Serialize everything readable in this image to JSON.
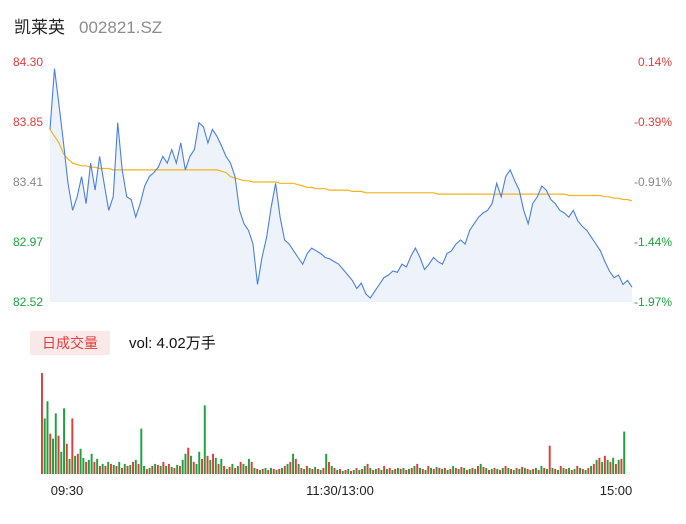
{
  "header": {
    "name": "凯莱英",
    "code": "002821.SZ"
  },
  "volume": {
    "badge": "日成交量",
    "label": "vol: 4.02万手"
  },
  "colors": {
    "price": "#4a7fe0",
    "avg": "#f4b223",
    "up": "#e03c3c",
    "down": "#19a33c",
    "area": "#eef2fb"
  },
  "chart_data": {
    "type": "line",
    "title": "",
    "xlabel": "",
    "ylabel": "",
    "x_ticks": [
      "09:30",
      "11:30/13:00",
      "15:00"
    ],
    "y_ticks_left": [
      "84.30",
      "83.85",
      "83.41",
      "82.97",
      "82.52"
    ],
    "y_ticks_right": [
      "0.14%",
      "-0.39%",
      "-0.91%",
      "-1.44%",
      "-1.97%"
    ],
    "ylim": [
      82.52,
      84.3
    ],
    "grid": false,
    "series": [
      {
        "values": [
          83.8,
          84.25,
          83.98,
          83.7,
          83.4,
          83.2,
          83.3,
          83.45,
          83.25,
          83.55,
          83.35,
          83.6,
          83.4,
          83.2,
          83.3,
          83.85,
          83.5,
          83.3,
          83.28,
          83.15,
          83.25,
          83.38,
          83.45,
          83.48,
          83.52,
          83.6,
          83.55,
          83.65,
          83.55,
          83.7,
          83.5,
          83.6,
          83.65,
          83.85,
          83.82,
          83.7,
          83.8,
          83.75,
          83.68,
          83.6,
          83.55,
          83.45,
          83.2,
          83.1,
          83.05,
          82.95,
          82.65,
          82.85,
          83.0,
          83.22,
          83.4,
          83.15,
          82.98,
          82.95,
          82.9,
          82.85,
          82.8,
          82.88,
          82.92,
          82.9,
          82.88,
          82.85,
          82.84,
          82.82,
          82.8,
          82.76,
          82.72,
          82.68,
          82.62,
          82.66,
          82.58,
          82.55,
          82.6,
          82.65,
          82.7,
          82.72,
          82.75,
          82.74,
          82.8,
          82.78,
          82.86,
          82.92,
          82.85,
          82.76,
          82.8,
          82.85,
          82.82,
          82.8,
          82.88,
          82.9,
          82.95,
          82.98,
          82.95,
          83.05,
          83.1,
          83.15,
          83.18,
          83.2,
          83.25,
          83.4,
          83.3,
          83.45,
          83.5,
          83.42,
          83.35,
          83.2,
          83.1,
          83.25,
          83.3,
          83.38,
          83.35,
          83.28,
          83.25,
          83.2,
          83.18,
          83.15,
          83.2,
          83.12,
          83.08,
          83.05,
          83.0,
          82.95,
          82.9,
          82.82,
          82.75,
          82.7,
          82.72,
          82.65,
          82.68,
          82.63
        ]
      },
      {
        "values": [
          83.8,
          83.75,
          83.7,
          83.62,
          83.58,
          83.55,
          83.54,
          83.53,
          83.53,
          83.52,
          83.52,
          83.51,
          83.51,
          83.51,
          83.5,
          83.5,
          83.5,
          83.5,
          83.5,
          83.5,
          83.5,
          83.5,
          83.5,
          83.5,
          83.5,
          83.5,
          83.5,
          83.5,
          83.5,
          83.5,
          83.5,
          83.5,
          83.5,
          83.5,
          83.5,
          83.5,
          83.5,
          83.5,
          83.49,
          83.48,
          83.45,
          83.44,
          83.43,
          83.42,
          83.42,
          83.41,
          83.41,
          83.41,
          83.41,
          83.41,
          83.41,
          83.4,
          83.4,
          83.4,
          83.4,
          83.39,
          83.38,
          83.37,
          83.37,
          83.36,
          83.36,
          83.36,
          83.35,
          83.35,
          83.35,
          83.35,
          83.35,
          83.34,
          83.34,
          83.34,
          83.33,
          83.33,
          83.33,
          83.33,
          83.33,
          83.33,
          83.33,
          83.33,
          83.33,
          83.33,
          83.33,
          83.33,
          83.33,
          83.33,
          83.33,
          83.33,
          83.32,
          83.32,
          83.32,
          83.32,
          83.32,
          83.32,
          83.32,
          83.32,
          83.32,
          83.32,
          83.32,
          83.32,
          83.32,
          83.32,
          83.32,
          83.32,
          83.32,
          83.32,
          83.32,
          83.32,
          83.32,
          83.32,
          83.32,
          83.32,
          83.32,
          83.32,
          83.32,
          83.32,
          83.32,
          83.31,
          83.31,
          83.31,
          83.31,
          83.31,
          83.31,
          83.31,
          83.31,
          83.3,
          83.3,
          83.29,
          83.29,
          83.28,
          83.28,
          83.27
        ]
      }
    ],
    "volume": {
      "values": [
        100,
        55,
        72,
        40,
        35,
        60,
        38,
        22,
        65,
        30,
        15,
        55,
        18,
        20,
        25,
        16,
        12,
        14,
        20,
        12,
        15,
        8,
        10,
        8,
        12,
        10,
        9,
        8,
        12,
        6,
        10,
        8,
        9,
        12,
        14,
        10,
        45,
        8,
        5,
        6,
        8,
        10,
        9,
        8,
        12,
        8,
        10,
        7,
        6,
        9,
        8,
        14,
        20,
        26,
        18,
        12,
        10,
        22,
        15,
        68,
        18,
        14,
        20,
        16,
        10,
        15,
        8,
        5,
        7,
        10,
        6,
        8,
        12,
        10,
        8,
        15,
        12,
        6,
        5,
        4,
        5,
        6,
        4,
        6,
        5,
        4,
        5,
        6,
        8,
        10,
        12,
        20,
        15,
        10,
        6,
        5,
        8,
        6,
        5,
        7,
        5,
        4,
        6,
        20,
        12,
        8,
        6,
        4,
        5,
        3,
        4,
        5,
        3,
        4,
        6,
        4,
        5,
        8,
        10,
        6,
        4,
        5,
        6,
        4,
        8,
        5,
        6,
        4,
        5,
        6,
        5,
        6,
        4,
        5,
        6,
        8,
        10,
        6,
        5,
        4,
        8,
        6,
        5,
        7,
        6,
        5,
        6,
        4,
        5,
        8,
        6,
        5,
        7,
        6,
        4,
        5,
        6,
        5,
        8,
        10,
        7,
        6,
        4,
        5,
        6,
        5,
        4,
        6,
        8,
        6,
        5,
        4,
        6,
        5,
        7,
        6,
        5,
        4,
        5,
        6,
        4,
        8,
        6,
        5,
        28,
        6,
        5,
        4,
        8,
        6,
        5,
        6,
        4,
        5,
        8,
        6,
        5,
        4,
        6,
        8,
        10,
        14,
        16,
        12,
        18,
        14,
        12,
        16,
        10,
        14,
        15,
        42
      ],
      "colors": [
        "up",
        "down",
        "down",
        "up",
        "down",
        "down",
        "up",
        "down",
        "down",
        "up",
        "down",
        "up",
        "down",
        "up",
        "down",
        "down",
        "up",
        "down",
        "down",
        "up",
        "down",
        "up",
        "down",
        "up",
        "down",
        "up",
        "down",
        "up",
        "down",
        "up",
        "down",
        "up",
        "down",
        "up",
        "down",
        "up",
        "down",
        "down",
        "up",
        "down",
        "up",
        "down",
        "up",
        "down",
        "up",
        "down",
        "up",
        "down",
        "up",
        "down",
        "up",
        "down",
        "down",
        "up",
        "down",
        "up",
        "down",
        "down",
        "up",
        "down",
        "up",
        "down",
        "up",
        "down",
        "up",
        "down",
        "up",
        "down",
        "up",
        "down",
        "up",
        "down",
        "up",
        "down",
        "up",
        "down",
        "up",
        "down",
        "up",
        "down",
        "up",
        "down",
        "up",
        "down",
        "up",
        "down",
        "up",
        "down",
        "up",
        "down",
        "up",
        "down",
        "up",
        "down",
        "up",
        "down",
        "up",
        "down",
        "up",
        "down",
        "up",
        "down",
        "up",
        "down",
        "up",
        "down",
        "up",
        "down",
        "up",
        "down",
        "up",
        "down",
        "up",
        "down",
        "up",
        "down",
        "up",
        "down",
        "up",
        "down",
        "up",
        "down",
        "up",
        "down",
        "up",
        "down",
        "up",
        "down",
        "up",
        "down",
        "up",
        "down",
        "up",
        "down",
        "up",
        "down",
        "up",
        "down",
        "up",
        "down",
        "up",
        "down",
        "up",
        "down",
        "up",
        "down",
        "up",
        "down",
        "up",
        "down",
        "up",
        "down",
        "up",
        "down",
        "up",
        "down",
        "up",
        "down",
        "up",
        "down",
        "up",
        "down",
        "up",
        "down",
        "up",
        "down",
        "up",
        "down",
        "up",
        "down",
        "up",
        "down",
        "up",
        "down",
        "up",
        "down",
        "up",
        "down",
        "up",
        "down",
        "up",
        "down",
        "up",
        "down",
        "up",
        "down",
        "up",
        "down",
        "up",
        "down",
        "up",
        "down",
        "up",
        "down",
        "up",
        "down",
        "up",
        "down",
        "up",
        "down",
        "up",
        "down",
        "up",
        "down",
        "up",
        "down",
        "up",
        "down",
        "up",
        "down",
        "up",
        "down",
        "down"
      ]
    }
  }
}
